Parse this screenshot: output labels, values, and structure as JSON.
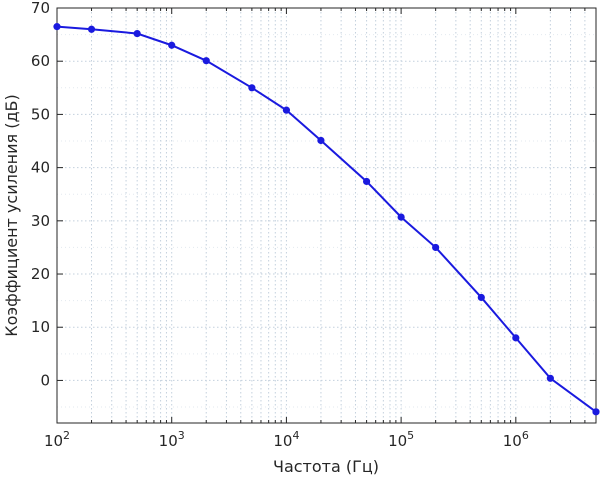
{
  "chart_data": {
    "type": "line",
    "xlabel": "Частота (Гц)",
    "ylabel": "Коэффициент усиления (дБ)",
    "x_scale": "log",
    "xlim": [
      100,
      5000000
    ],
    "ylim": [
      -8,
      70
    ],
    "x_ticks": [
      {
        "base": "10",
        "exp": "2"
      },
      {
        "base": "10",
        "exp": "3"
      },
      {
        "base": "10",
        "exp": "4"
      },
      {
        "base": "10",
        "exp": "5"
      },
      {
        "base": "10",
        "exp": "6"
      }
    ],
    "y_ticks": [
      "0",
      "10",
      "20",
      "30",
      "40",
      "50",
      "60",
      "70"
    ],
    "grid": true,
    "line_color": "#1a1adf",
    "series": [
      {
        "x": [
          100,
          200,
          500,
          1000,
          2000,
          5000,
          10000,
          20000,
          50000,
          100000,
          200000,
          500000,
          1000000,
          2000000,
          5000000
        ],
        "y": [
          66.5,
          66.0,
          65.2,
          63.0,
          60.1,
          55.0,
          50.8,
          45.1,
          37.4,
          30.7,
          25.0,
          15.6,
          8.0,
          0.4,
          -5.9
        ]
      }
    ]
  }
}
